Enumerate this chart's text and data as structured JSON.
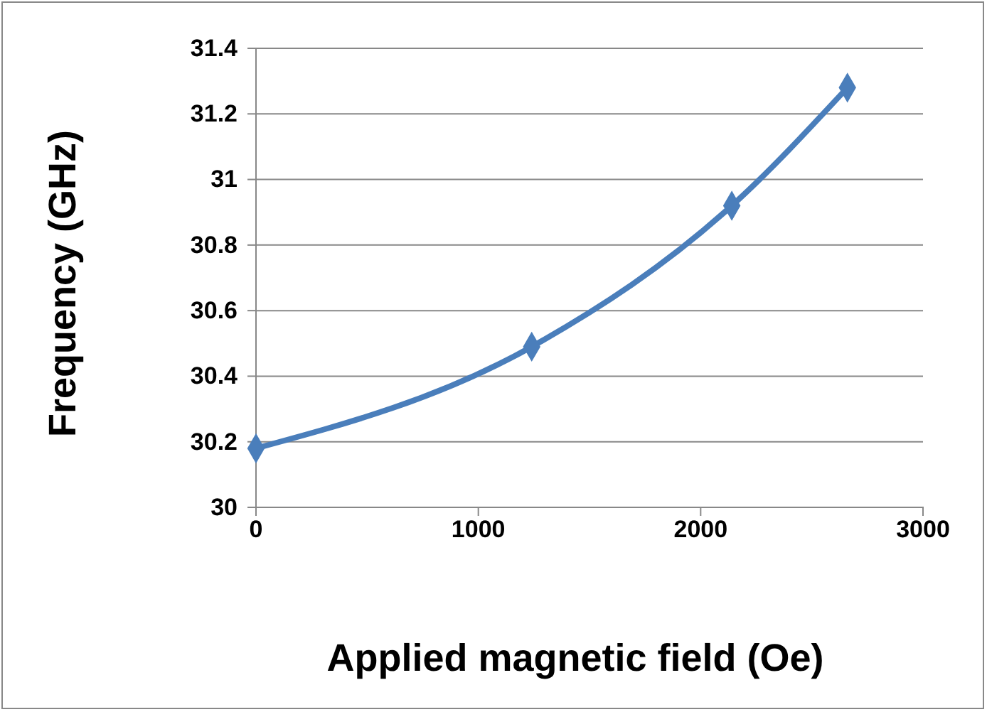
{
  "chart_data": {
    "type": "line",
    "xlabel": "Applied magnetic field (Oe)",
    "ylabel": "Frequency (GHz)",
    "x": [
      0,
      1240,
      2140,
      2660
    ],
    "series": [
      {
        "color": "#4a7ebb",
        "values": [
          30.18,
          30.49,
          30.92,
          31.28
        ]
      }
    ],
    "xlim": [
      0,
      3000
    ],
    "xticks": [
      0,
      1000,
      2000,
      3000
    ],
    "ylim": [
      30,
      31.4
    ],
    "yticks": [
      30,
      30.2,
      30.4,
      30.6,
      30.8,
      31,
      31.2,
      31.4
    ],
    "grid": "y",
    "marker": "diamond",
    "line_style": "solid"
  }
}
